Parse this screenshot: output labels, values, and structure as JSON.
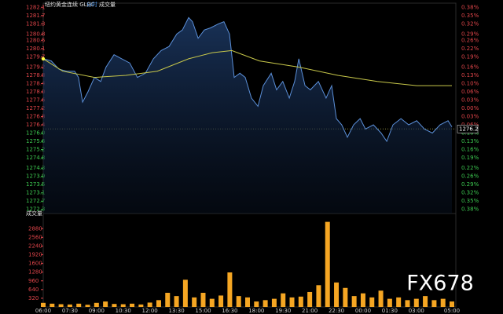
{
  "chart_data": [
    {
      "type": "line",
      "title": "纽约黄金连续 GLBC",
      "subtitle": "分时",
      "x": [
        0,
        27,
        53,
        80,
        106,
        119,
        133,
        151,
        173,
        194,
        212,
        239,
        265,
        292,
        318,
        345,
        372,
        398,
        425,
        451,
        470,
        491,
        504,
        523,
        544,
        565,
        592,
        610,
        629,
        645,
        664,
        682,
        703,
        725,
        743,
        770,
        788,
        809,
        831,
        849,
        863,
        884,
        902,
        929,
        955,
        974,
        990,
        1008,
        1027,
        1048,
        1070,
        1088,
        1115,
        1141,
        1160,
        1181,
        1208,
        1234,
        1261,
        1287,
        1314,
        1340,
        1367,
        1380
      ],
      "xlim": [
        0,
        1380
      ],
      "xticks": [
        {
          "value": 0,
          "label": "06:00"
        },
        {
          "value": 90,
          "label": "07:30"
        },
        {
          "value": 180,
          "label": "09:00"
        },
        {
          "value": 270,
          "label": "10:30"
        },
        {
          "value": 360,
          "label": "12:00"
        },
        {
          "value": 450,
          "label": "13:30"
        },
        {
          "value": 540,
          "label": "15:00"
        },
        {
          "value": 630,
          "label": "16:30"
        },
        {
          "value": 720,
          "label": "18:00"
        },
        {
          "value": 810,
          "label": "19:30"
        },
        {
          "value": 900,
          "label": "21:00"
        },
        {
          "value": 990,
          "label": "22:30"
        },
        {
          "value": 1080,
          "label": "00:00"
        },
        {
          "value": 1170,
          "label": "01:30"
        },
        {
          "value": 1260,
          "label": "03:00"
        },
        {
          "value": 1380,
          "label": "05:00"
        }
      ],
      "ylim": [
        1272.1,
        1282.3
      ],
      "yticks": [
        1282.1,
        1281.7,
        1281.3,
        1280.8,
        1280.5,
        1280.1,
        1279.7,
        1279.2,
        1278.8,
        1278.4,
        {
          "value": 1278.0,
          "label": "1278.0"
        },
        1277.6,
        1277.2,
        1276.8,
        1276.4,
        {
          "value": 1276.0,
          "label": "1276.0"
        },
        1275.6,
        1275.2,
        1274.8,
        1274.3,
        1273.9,
        1273.5,
        1273.1,
        1272.7,
        1272.3
      ],
      "right_labels": [
        "0.38%",
        "0.35%",
        "0.32%",
        "0.29%",
        "0.26%",
        "0.22%",
        "0.19%",
        "0.16%",
        "0.13%",
        "0.10%",
        "0.06%",
        "0.03%",
        "0.00%",
        "0.03%",
        "0.06%",
        "0.10%",
        "0.13%",
        "0.16%",
        "0.19%",
        "0.22%",
        "0.26%",
        "0.29%",
        "0.32%",
        "0.35%",
        "0.38%"
      ],
      "prev_close": 1276.2,
      "series": [
        {
          "color": "#5b8fd8",
          "values": [
            1279.6,
            1279.5,
            1279.1,
            1279.0,
            1279.0,
            1278.7,
            1277.5,
            1278.0,
            1278.7,
            1278.5,
            1279.2,
            1279.8,
            1279.6,
            1279.4,
            1278.7,
            1278.9,
            1279.6,
            1280.0,
            1280.2,
            1280.8,
            1281.0,
            1281.6,
            1281.4,
            1280.6,
            1281.0,
            1281.1,
            1281.3,
            1281.4,
            1280.8,
            1278.7,
            1278.9,
            1278.7,
            1277.7,
            1277.3,
            1278.3,
            1278.9,
            1278.1,
            1278.5,
            1277.7,
            1278.5,
            1279.6,
            1278.3,
            1278.1,
            1278.5,
            1277.7,
            1278.3,
            1276.7,
            1276.4,
            1275.8,
            1276.4,
            1276.7,
            1276.2,
            1276.4,
            1276.0,
            1275.6,
            1276.4,
            1276.7,
            1276.4,
            1276.6,
            1276.2,
            1276.0,
            1276.4,
            1276.6,
            1276.3
          ]
        },
        {
          "color": "#c8c84a",
          "x": [
            0,
            66,
            173,
            279,
            385,
            491,
            571,
            637,
            730,
            863,
            995,
            1128,
            1261,
            1380
          ],
          "values": [
            1279.6,
            1279.0,
            1278.7,
            1278.8,
            1279.0,
            1279.6,
            1279.9,
            1280.0,
            1279.5,
            1279.2,
            1278.8,
            1278.5,
            1278.3,
            1278.3
          ]
        }
      ]
    },
    {
      "type": "bar",
      "title": "成交量",
      "watermark": "FX678",
      "color": "#f5a623",
      "x": [
        0,
        30,
        60,
        90,
        120,
        150,
        180,
        210,
        240,
        270,
        300,
        330,
        360,
        390,
        420,
        450,
        480,
        510,
        540,
        570,
        600,
        630,
        660,
        690,
        720,
        750,
        780,
        810,
        840,
        870,
        900,
        930,
        960,
        990,
        1020,
        1050,
        1080,
        1110,
        1140,
        1170,
        1200,
        1230,
        1260,
        1290,
        1320,
        1350,
        1380
      ],
      "values": [
        150,
        120,
        100,
        90,
        120,
        80,
        150,
        200,
        110,
        100,
        120,
        90,
        160,
        250,
        520,
        400,
        1000,
        350,
        520,
        300,
        420,
        1270,
        400,
        350,
        200,
        250,
        300,
        500,
        350,
        380,
        550,
        800,
        3130,
        900,
        700,
        400,
        500,
        350,
        600,
        300,
        350,
        250,
        300,
        400,
        250,
        300,
        200
      ],
      "ylim": [
        0,
        3350
      ],
      "yticks": [
        320,
        640,
        960,
        1280,
        1600,
        1920,
        2240,
        2560,
        2880
      ]
    }
  ]
}
